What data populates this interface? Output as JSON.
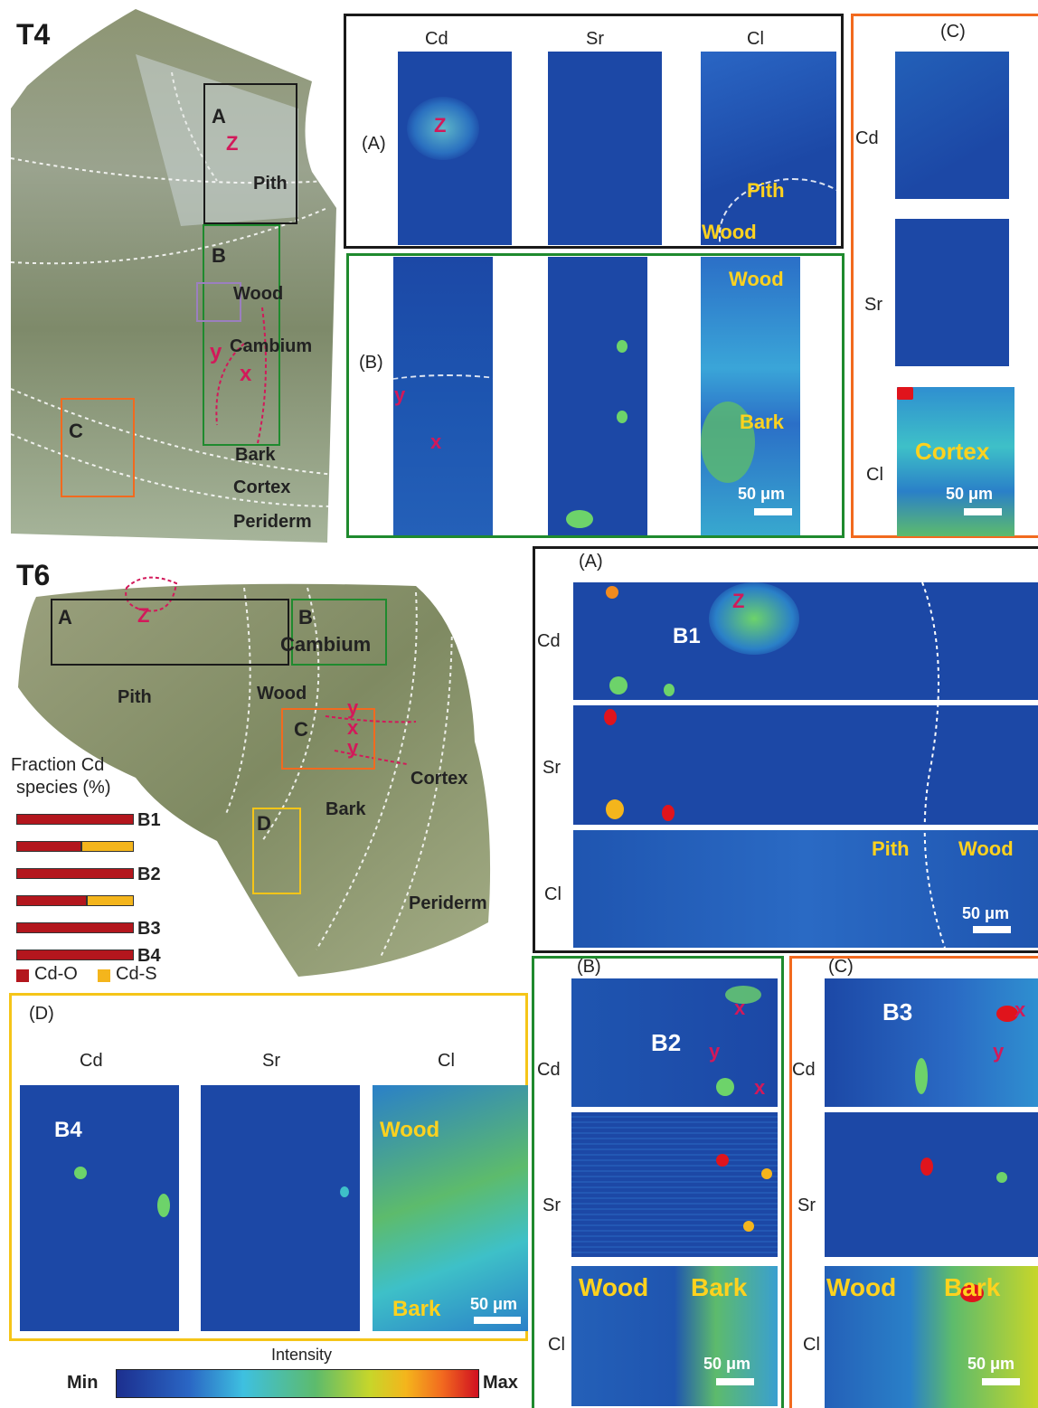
{
  "t4": {
    "title": "T4",
    "photo_labels": {
      "a": "A",
      "b": "B",
      "c": "C",
      "z": "Z",
      "y": "y",
      "x": "x",
      "pith": "Pith",
      "wood": "Wood",
      "cambium": "Cambium",
      "bark": "Bark",
      "cortex": "Cortex",
      "periderm": "Periderm"
    },
    "panel_a": {
      "label": "(A)",
      "cols": [
        "Cd",
        "Sr",
        "Cl"
      ],
      "z": "Z",
      "pith": "Pith",
      "wood": "Wood"
    },
    "panel_b": {
      "label": "(B)",
      "y": "y",
      "x": "x",
      "wood": "Wood",
      "bark": "Bark",
      "scale": "50 μm"
    },
    "panel_c": {
      "label": "(C)",
      "rows": [
        "Cd",
        "Sr",
        "Cl"
      ],
      "cortex": "Cortex",
      "scale": "50 μm"
    }
  },
  "t6": {
    "title": "T6",
    "photo_labels": {
      "a": "A",
      "b": "B",
      "c": "C",
      "d": "D",
      "z": "Z",
      "y1": "y",
      "x": "x",
      "y2": "y",
      "cambium": "Cambium",
      "pith": "Pith",
      "wood": "Wood",
      "cortex": "Cortex",
      "bark": "Bark",
      "periderm": "Periderm"
    },
    "fraction": {
      "title1": "Fraction Cd",
      "title2": "species (%)",
      "bars": [
        {
          "label": "B1",
          "cd_o": 100,
          "cd_s": 0
        },
        {
          "label": "",
          "cd_o": 55,
          "cd_s": 45
        },
        {
          "label": "B2",
          "cd_o": 100,
          "cd_s": 0
        },
        {
          "label": "",
          "cd_o": 60,
          "cd_s": 40
        },
        {
          "label": "B3",
          "cd_o": 100,
          "cd_s": 0
        },
        {
          "label": "B4",
          "cd_o": 100,
          "cd_s": 0
        }
      ],
      "legend": [
        "Cd-O",
        "Cd-S"
      ],
      "colors": {
        "cd_o": "#b3161d",
        "cd_s": "#f4b51c"
      }
    },
    "panel_a": {
      "label": "(A)",
      "rows": [
        "Cd",
        "Sr",
        "Cl"
      ],
      "z": "Z",
      "b1": "B1",
      "pith": "Pith",
      "wood": "Wood",
      "scale": "50 μm"
    },
    "panel_b": {
      "label": "(B)",
      "rows": [
        "Cd",
        "Sr",
        "Cl"
      ],
      "b2": "B2",
      "x": "x",
      "y": "y",
      "wood": "Wood",
      "bark": "Bark",
      "scale": "50 μm"
    },
    "panel_c": {
      "label": "(C)",
      "rows": [
        "Cd",
        "Sr",
        "Cl"
      ],
      "b3": "B3",
      "x": "x",
      "y": "y",
      "wood": "Wood",
      "bark": "Bark",
      "scale": "50 μm"
    },
    "panel_d": {
      "label": "(D)",
      "cols": [
        "Cd",
        "Sr",
        "Cl"
      ],
      "b4": "B4",
      "wood": "Wood",
      "bark": "Bark",
      "scale": "50 μm"
    }
  },
  "colorbar": {
    "title": "Intensity",
    "min": "Min",
    "max": "Max"
  },
  "colors": {
    "black_frame": "#1a1a1a",
    "green_frame": "#1f8a2e",
    "orange_frame": "#f26a1f",
    "yellow_frame": "#f5c518",
    "map_bg": "#1c48a6"
  }
}
